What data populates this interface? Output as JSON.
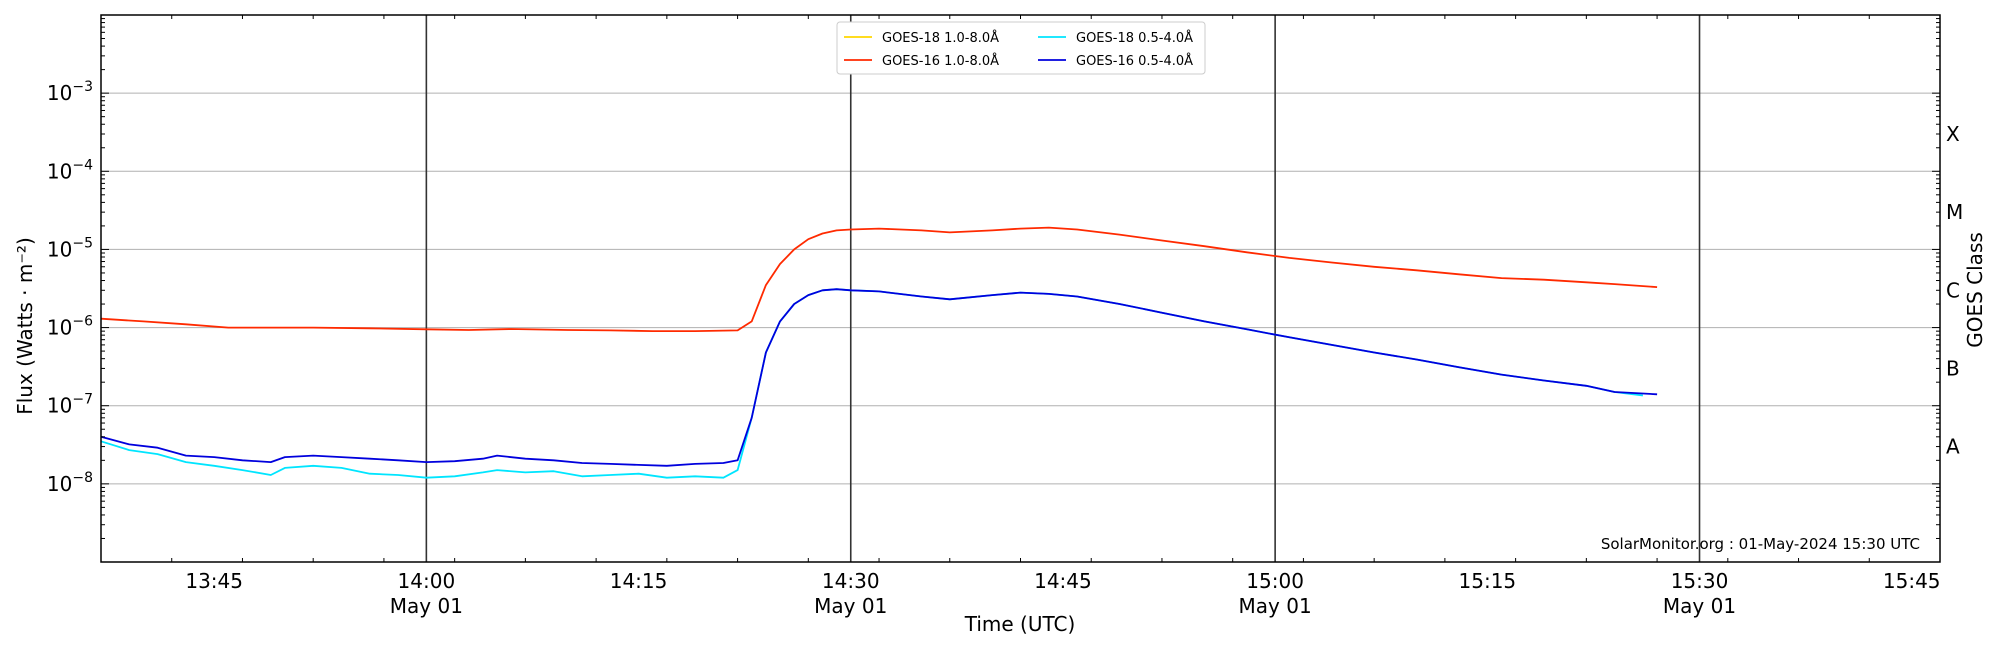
{
  "chart_data": {
    "type": "line",
    "xlabel": "Time (UTC)",
    "ylabel": "Flux (Watts · m⁻²)",
    "y2label": "GOES Class",
    "yscale": "log",
    "ylim": [
      1e-09,
      0.01
    ],
    "xlim": [
      "13:37",
      "15:47"
    ],
    "x_tick_labels": [
      "13:45",
      "14:00",
      "14:15",
      "14:30",
      "14:45",
      "15:00",
      "15:15",
      "15:30",
      "15:45"
    ],
    "x_tick_sublabels": [
      "",
      "May 01",
      "",
      "May 01",
      "",
      "May 01",
      "",
      "May 01",
      ""
    ],
    "x_major_lines": [
      "14:00",
      "14:30",
      "15:00",
      "15:30"
    ],
    "y_tick_labels": [
      {
        "value": 1e-08,
        "base": "10",
        "exp": "−8"
      },
      {
        "value": 1e-07,
        "base": "10",
        "exp": "−7"
      },
      {
        "value": 1e-06,
        "base": "10",
        "exp": "−6"
      },
      {
        "value": 1e-05,
        "base": "10",
        "exp": "−5"
      },
      {
        "value": 0.0001,
        "base": "10",
        "exp": "−4"
      },
      {
        "value": 0.001,
        "base": "10",
        "exp": "−3"
      }
    ],
    "goes_classes": [
      {
        "label": "A",
        "value": 3e-08
      },
      {
        "label": "B",
        "value": 3e-07
      },
      {
        "label": "C",
        "value": 3e-06
      },
      {
        "label": "M",
        "value": 3e-05
      },
      {
        "label": "X",
        "value": 0.0003
      }
    ],
    "grid": true,
    "legend_position": "top-center",
    "credit": "SolarMonitor.org : 01-May-2024 15:30 UTC",
    "series": [
      {
        "name": "GOES-18 1.0-8.0Å",
        "color": "#ffd700",
        "x": [],
        "y": []
      },
      {
        "name": "GOES-16 1.0-8.0Å",
        "color": "#ff2a00",
        "x": [
          "13:37",
          "13:40",
          "13:43",
          "13:46",
          "13:49",
          "13:52",
          "13:56",
          "14:00",
          "14:03",
          "14:06",
          "14:10",
          "14:13",
          "14:16",
          "14:19",
          "14:22",
          "14:23",
          "14:24",
          "14:25",
          "14:26",
          "14:27",
          "14:28",
          "14:29",
          "14:30",
          "14:32",
          "14:35",
          "14:37",
          "14:40",
          "14:42",
          "14:44",
          "14:46",
          "14:49",
          "14:52",
          "14:55",
          "14:58",
          "15:01",
          "15:04",
          "15:07",
          "15:10",
          "15:13",
          "15:16",
          "15:19",
          "15:22",
          "15:24",
          "15:27"
        ],
        "y": [
          1.3e-06,
          1.2e-06,
          1.1e-06,
          1e-06,
          1e-06,
          1e-06,
          9.8e-07,
          9.5e-07,
          9.3e-07,
          9.6e-07,
          9.3e-07,
          9.2e-07,
          9e-07,
          9e-07,
          9.2e-07,
          1.2e-06,
          3.5e-06,
          6.5e-06,
          1e-05,
          1.35e-05,
          1.6e-05,
          1.75e-05,
          1.8e-05,
          1.85e-05,
          1.75e-05,
          1.65e-05,
          1.75e-05,
          1.85e-05,
          1.9e-05,
          1.8e-05,
          1.55e-05,
          1.3e-05,
          1.1e-05,
          9.2e-06,
          7.8e-06,
          6.8e-06,
          6e-06,
          5.4e-06,
          4.8e-06,
          4.3e-06,
          4.1e-06,
          3.8e-06,
          3.6e-06,
          3.3e-06
        ]
      },
      {
        "name": "GOES-18 0.5-4.0Å",
        "color": "#00e5ff",
        "x": [
          "13:37",
          "13:39",
          "13:41",
          "13:43",
          "13:45",
          "13:47",
          "13:49",
          "13:50",
          "13:52",
          "13:54",
          "13:56",
          "13:58",
          "14:00",
          "14:02",
          "14:04",
          "14:05",
          "14:07",
          "14:09",
          "14:11",
          "14:13",
          "14:15",
          "14:17",
          "14:19",
          "14:21",
          "14:22",
          "14:23",
          "14:24",
          "14:25",
          "14:26",
          "14:27",
          "14:28",
          "14:29",
          "14:30",
          "14:32",
          "14:35",
          "14:37",
          "14:40",
          "14:42",
          "14:44",
          "14:46",
          "14:49",
          "14:52",
          "14:55",
          "14:58",
          "15:01",
          "15:04",
          "15:07",
          "15:10",
          "15:13",
          "15:16",
          "15:19",
          "15:22",
          "15:24",
          "15:26"
        ],
        "y": [
          3.5e-08,
          2.7e-08,
          2.4e-08,
          1.9e-08,
          1.7e-08,
          1.5e-08,
          1.3e-08,
          1.6e-08,
          1.7e-08,
          1.6e-08,
          1.35e-08,
          1.3e-08,
          1.2e-08,
          1.25e-08,
          1.4e-08,
          1.5e-08,
          1.4e-08,
          1.45e-08,
          1.25e-08,
          1.3e-08,
          1.35e-08,
          1.2e-08,
          1.25e-08,
          1.2e-08,
          1.5e-08,
          7e-08,
          4.8e-07,
          1.2e-06,
          2e-06,
          2.6e-06,
          3e-06,
          3.1e-06,
          3e-06,
          2.9e-06,
          2.5e-06,
          2.3e-06,
          2.6e-06,
          2.8e-06,
          2.7e-06,
          2.5e-06,
          2e-06,
          1.55e-06,
          1.2e-06,
          9.5e-07,
          7.5e-07,
          6e-07,
          4.8e-07,
          3.9e-07,
          3.1e-07,
          2.5e-07,
          2.1e-07,
          1.8e-07,
          1.5e-07,
          1.35e-07
        ]
      },
      {
        "name": "GOES-16 0.5-4.0Å",
        "color": "#0000dd",
        "x": [
          "13:37",
          "13:39",
          "13:41",
          "13:43",
          "13:45",
          "13:47",
          "13:49",
          "13:50",
          "13:52",
          "13:54",
          "13:56",
          "13:58",
          "14:00",
          "14:02",
          "14:04",
          "14:05",
          "14:07",
          "14:09",
          "14:11",
          "14:13",
          "14:15",
          "14:17",
          "14:19",
          "14:21",
          "14:22",
          "14:23",
          "14:24",
          "14:25",
          "14:26",
          "14:27",
          "14:28",
          "14:29",
          "14:30",
          "14:32",
          "14:35",
          "14:37",
          "14:40",
          "14:42",
          "14:44",
          "14:46",
          "14:49",
          "14:52",
          "14:55",
          "14:58",
          "15:01",
          "15:04",
          "15:07",
          "15:10",
          "15:13",
          "15:16",
          "15:19",
          "15:22",
          "15:24",
          "15:27"
        ],
        "y": [
          4e-08,
          3.2e-08,
          2.9e-08,
          2.3e-08,
          2.2e-08,
          2e-08,
          1.9e-08,
          2.2e-08,
          2.3e-08,
          2.2e-08,
          2.1e-08,
          2e-08,
          1.9e-08,
          1.95e-08,
          2.1e-08,
          2.3e-08,
          2.1e-08,
          2e-08,
          1.85e-08,
          1.8e-08,
          1.75e-08,
          1.7e-08,
          1.8e-08,
          1.85e-08,
          2e-08,
          7e-08,
          4.8e-07,
          1.2e-06,
          2e-06,
          2.6e-06,
          3e-06,
          3.1e-06,
          3e-06,
          2.9e-06,
          2.5e-06,
          2.3e-06,
          2.6e-06,
          2.8e-06,
          2.7e-06,
          2.5e-06,
          2e-06,
          1.55e-06,
          1.2e-06,
          9.5e-07,
          7.5e-07,
          6e-07,
          4.8e-07,
          3.9e-07,
          3.1e-07,
          2.5e-07,
          2.1e-07,
          1.8e-07,
          1.5e-07,
          1.4e-07
        ]
      }
    ]
  }
}
